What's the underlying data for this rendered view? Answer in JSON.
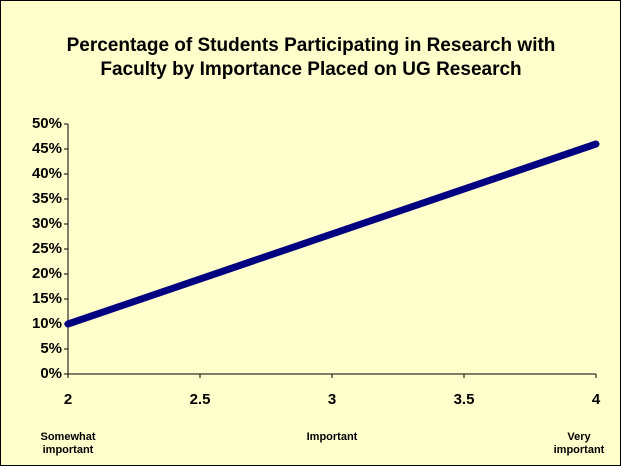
{
  "chart_data": {
    "type": "line",
    "title": [
      "Percentage of Students Participating in Research with",
      "Faculty by Importance Placed on UG Research"
    ],
    "x": [
      2,
      4
    ],
    "values": [
      10,
      46
    ],
    "color": "#000080",
    "xlim": [
      2,
      4
    ],
    "xticks": [
      2,
      2.5,
      3,
      3.5,
      4
    ],
    "ylim": [
      0,
      50
    ],
    "yticks": [
      {
        "value": 0,
        "label": "0%"
      },
      {
        "value": 5,
        "label": "5%"
      },
      {
        "value": 10,
        "label": "10%"
      },
      {
        "value": 15,
        "label": "15%"
      },
      {
        "value": 20,
        "label": "20%"
      },
      {
        "value": 25,
        "label": "25%"
      },
      {
        "value": 30,
        "label": "30%"
      },
      {
        "value": 35,
        "label": "35%"
      },
      {
        "value": 40,
        "label": "40%"
      },
      {
        "value": 45,
        "label": "45%"
      },
      {
        "value": 50,
        "label": "50%"
      }
    ],
    "grid": false,
    "annotations": [
      {
        "text": "Somewhat important",
        "x": 2
      },
      {
        "text": "Important",
        "x": 3
      },
      {
        "text": "Very important",
        "x": 4
      }
    ]
  }
}
